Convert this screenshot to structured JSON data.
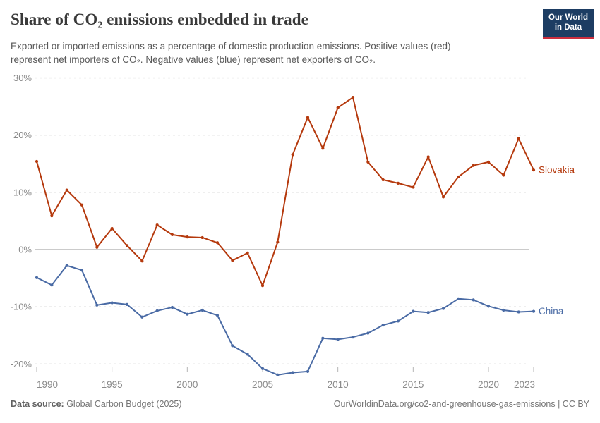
{
  "header": {
    "title": "Share of CO₂ emissions embedded in trade",
    "subtitle_line1": "Exported or imported emissions as a percentage of domestic production emissions. Positive values (red)",
    "subtitle_line2": "represent net importers of CO₂. Negative values (blue) represent net exporters of CO₂.",
    "logo": {
      "line1": "Our World",
      "line2": "in Data"
    }
  },
  "chart_data": {
    "type": "line",
    "title": "Share of CO₂ emissions embedded in trade",
    "xlabel": "",
    "ylabel": "",
    "ylim": [
      -25,
      31
    ],
    "grid": "horizontal-dashed",
    "zero_line": true,
    "legend_position": "line-end-labels",
    "x": [
      1990,
      1991,
      1992,
      1993,
      1994,
      1995,
      1996,
      1997,
      1998,
      1999,
      2000,
      2001,
      2002,
      2003,
      2004,
      2005,
      2006,
      2007,
      2008,
      2009,
      2010,
      2011,
      2012,
      2013,
      2014,
      2015,
      2016,
      2017,
      2018,
      2019,
      2020,
      2021,
      2022,
      2023
    ],
    "series": [
      {
        "name": "Slovakia",
        "color": "#b5390d",
        "values": [
          15.4,
          5.9,
          10.4,
          7.8,
          0.4,
          3.7,
          0.7,
          -2.0,
          4.3,
          2.6,
          2.2,
          2.1,
          1.2,
          -1.9,
          -0.6,
          -6.3,
          1.3,
          16.6,
          23.1,
          17.7,
          24.8,
          26.6,
          15.3,
          12.2,
          11.6,
          10.9,
          16.2,
          9.2,
          12.7,
          14.7,
          15.3,
          13.0,
          19.4,
          13.9
        ]
      },
      {
        "name": "China",
        "color": "#4a6ba5",
        "values": [
          -4.9,
          -6.2,
          -2.8,
          -3.6,
          -9.7,
          -9.3,
          -9.6,
          -11.8,
          -10.7,
          -10.1,
          -11.3,
          -10.6,
          -11.5,
          -16.8,
          -18.3,
          -20.8,
          -21.9,
          -21.5,
          -21.3,
          -15.5,
          -15.7,
          -15.3,
          -14.6,
          -13.2,
          -12.5,
          -10.8,
          -11.0,
          -10.3,
          -8.6,
          -8.8,
          -9.9,
          -10.6,
          -10.9,
          -10.8
        ]
      }
    ],
    "yticks": [
      {
        "value": 30,
        "label": "30%"
      },
      {
        "value": 20,
        "label": "20%"
      },
      {
        "value": 10,
        "label": "10%"
      },
      {
        "value": 0,
        "label": "0%"
      },
      {
        "value": -10,
        "label": "-10%"
      },
      {
        "value": -20,
        "label": "-20%"
      }
    ],
    "xticks": [
      {
        "value": 1990,
        "label": "1990"
      },
      {
        "value": 1995,
        "label": "1995"
      },
      {
        "value": 2000,
        "label": "2000"
      },
      {
        "value": 2005,
        "label": "2005"
      },
      {
        "value": 2010,
        "label": "2010"
      },
      {
        "value": 2015,
        "label": "2015"
      },
      {
        "value": 2020,
        "label": "2020"
      },
      {
        "value": 2023,
        "label": "2023"
      }
    ]
  },
  "footer": {
    "source_label": "Data source:",
    "source_value": " Global Carbon Budget (2025)",
    "right_text": "OurWorldinData.org/co2-and-greenhouse-gas-emissions | CC BY"
  }
}
